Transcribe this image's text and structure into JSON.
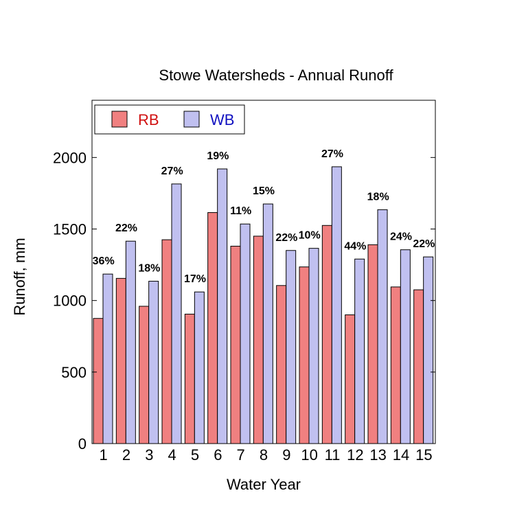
{
  "chart_data": {
    "type": "bar",
    "title": "Stowe Watersheds - Annual Runoff",
    "xlabel": "Water Year",
    "ylabel": "Runoff, mm",
    "ylim": [
      0,
      2400
    ],
    "yticks": [
      0,
      500,
      1000,
      1500,
      2000
    ],
    "categories": [
      "1",
      "2",
      "3",
      "4",
      "5",
      "6",
      "7",
      "8",
      "9",
      "10",
      "11",
      "12",
      "13",
      "14",
      "15"
    ],
    "series": [
      {
        "name": "RB",
        "color": "#f08080",
        "label_color": "#d01010",
        "values": [
          875,
          1155,
          960,
          1425,
          905,
          1615,
          1380,
          1450,
          1105,
          1235,
          1525,
          900,
          1390,
          1095,
          1075
        ]
      },
      {
        "name": "WB",
        "color": "#c0c0f0",
        "label_color": "#1010c0",
        "values": [
          1185,
          1415,
          1135,
          1815,
          1060,
          1920,
          1535,
          1675,
          1350,
          1365,
          1935,
          1290,
          1635,
          1355,
          1305
        ]
      }
    ],
    "annotations": [
      "36%",
      "22%",
      "18%",
      "27%",
      "17%",
      "19%",
      "11%",
      "15%",
      "22%",
      "10%",
      "27%",
      "44%",
      "18%",
      "24%",
      "22%"
    ],
    "legend_position": "top-left",
    "grid": false
  }
}
